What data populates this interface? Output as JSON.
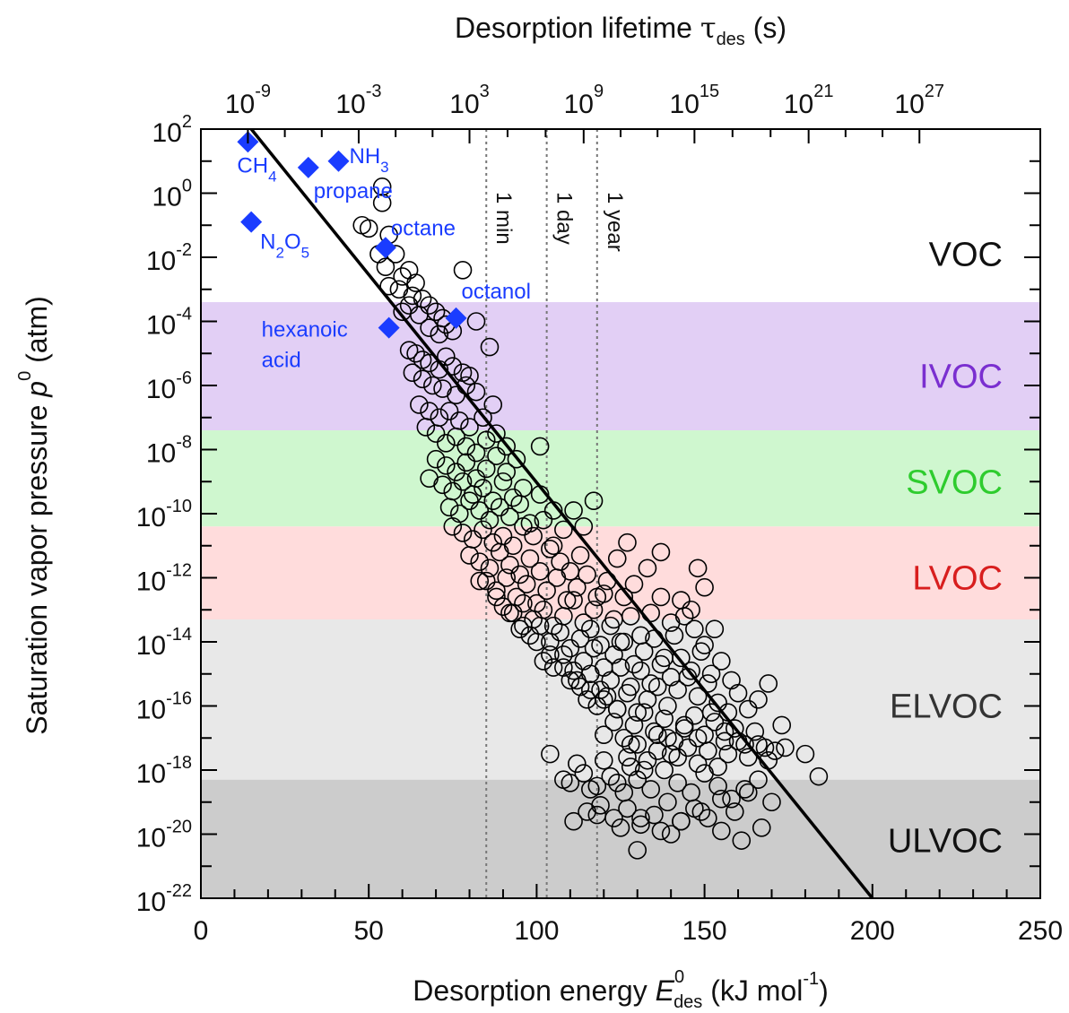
{
  "chart_data": {
    "type": "scatter",
    "title": "",
    "xlabel": {
      "main": "Desorption energy ",
      "var": "E",
      "sup": "0",
      "sub": "des",
      "unit_pre": " (kJ mol",
      "unit_sup": "-1",
      "unit_post": ")"
    },
    "ylabel": {
      "main": "Saturation vapor pressure ",
      "var": "p",
      "sup": "0",
      "unit": " (atm)"
    },
    "top_xlabel": {
      "main": "Desorption lifetime ",
      "var": "τ",
      "sub": "des",
      "unit": " (s)"
    },
    "xlim": [
      0,
      250
    ],
    "ylim_log10": [
      -22,
      2
    ],
    "x_ticks": [
      {
        "value": 0,
        "label": "0"
      },
      {
        "value": 50,
        "label": "50"
      },
      {
        "value": 100,
        "label": "100"
      },
      {
        "value": 150,
        "label": "150"
      },
      {
        "value": 200,
        "label": "200"
      },
      {
        "value": 250,
        "label": "250"
      }
    ],
    "y_ticks": [
      {
        "exp": 2,
        "base": "10",
        "sup": "2"
      },
      {
        "exp": 0,
        "base": "10",
        "sup": "0"
      },
      {
        "exp": -2,
        "base": "10",
        "sup": "-2"
      },
      {
        "exp": -4,
        "base": "10",
        "sup": "-4"
      },
      {
        "exp": -6,
        "base": "10",
        "sup": "-6"
      },
      {
        "exp": -8,
        "base": "10",
        "sup": "-8"
      },
      {
        "exp": -10,
        "base": "10",
        "sup": "-10"
      },
      {
        "exp": -12,
        "base": "10",
        "sup": "-12"
      },
      {
        "exp": -14,
        "base": "10",
        "sup": "-14"
      },
      {
        "exp": -16,
        "base": "10",
        "sup": "-16"
      },
      {
        "exp": -18,
        "base": "10",
        "sup": "-18"
      },
      {
        "exp": -20,
        "base": "10",
        "sup": "-20"
      },
      {
        "exp": -22,
        "base": "10",
        "sup": "-22"
      }
    ],
    "top_ticks": [
      {
        "energy": 14,
        "base": "10",
        "sup": "-9"
      },
      {
        "energy": 47,
        "base": "10",
        "sup": "-3"
      },
      {
        "energy": 80,
        "base": "10",
        "sup": "3"
      },
      {
        "energy": 114,
        "base": "10",
        "sup": "9"
      },
      {
        "energy": 147,
        "base": "10",
        "sup": "15"
      },
      {
        "energy": 181,
        "base": "10",
        "sup": "21"
      },
      {
        "energy": 214,
        "base": "10",
        "sup": "27"
      }
    ],
    "bands": [
      {
        "name": "VOC",
        "from": -3.4,
        "to": 2,
        "color": "#ffffff",
        "text_color": "#111111",
        "label_exp": -1.9
      },
      {
        "name": "IVOC",
        "from": -7.4,
        "to": -3.4,
        "color": "#e2cff5",
        "text_color": "#7a2fd0",
        "label_exp": -5.7
      },
      {
        "name": "SVOC",
        "from": -10.4,
        "to": -7.4,
        "color": "#cff7cf",
        "text_color": "#2ecc2e",
        "label_exp": -9.0
      },
      {
        "name": "LVOC",
        "from": -13.3,
        "to": -10.4,
        "color": "#ffdcdc",
        "text_color": "#d81e1e",
        "label_exp": -12.0
      },
      {
        "name": "ELVOC",
        "from": -18.3,
        "to": -13.3,
        "color": "#e8e8e8",
        "text_color": "#333333",
        "label_exp": -16.0
      },
      {
        "name": "ULVOC",
        "from": -22,
        "to": -18.3,
        "color": "#cccccc",
        "text_color": "#111111",
        "label_exp": -20.2
      }
    ],
    "vertical_lines": [
      {
        "energy": 85,
        "label": "1 min"
      },
      {
        "energy": 103,
        "label": "1 day"
      },
      {
        "energy": 118,
        "label": "1 year"
      }
    ],
    "fit_line": {
      "x": [
        15,
        200
      ],
      "log10_y": [
        2,
        -22
      ]
    },
    "compounds": [
      {
        "name": "CH4",
        "base": "CH",
        "sub": "4",
        "x": 14,
        "log10_y": 1.6
      },
      {
        "name": "propane",
        "base": "propane",
        "sub": "",
        "x": 32,
        "log10_y": 0.8
      },
      {
        "name": "NH3",
        "base": "NH",
        "sub": "3",
        "x": 41,
        "log10_y": 1.0
      },
      {
        "name": "N2O5",
        "base": "N",
        "sub": "2",
        "tail": "O",
        "sub2": "5",
        "x": 15,
        "log10_y": -0.9
      },
      {
        "name": "octane",
        "base": "octane",
        "sub": "",
        "x": 55,
        "log10_y": -1.7
      },
      {
        "name": "octanol",
        "base": "octanol",
        "sub": "",
        "x": 76,
        "log10_y": -3.9
      },
      {
        "name": "hexanoic acid",
        "base": "hexanoic",
        "base2": "acid",
        "sub": "",
        "x": 56,
        "log10_y": -4.2
      }
    ],
    "series": [
      {
        "marker": "open-circle",
        "x": [
          54,
          54,
          48,
          50,
          56,
          53,
          58,
          55,
          62,
          60,
          64,
          56,
          59,
          78,
          63,
          66,
          62,
          60,
          65,
          68,
          70,
          72,
          68,
          71,
          73,
          75,
          82,
          86,
          62,
          64,
          66,
          68,
          71,
          73,
          75,
          78,
          80,
          63,
          66,
          69,
          72,
          76,
          79,
          82,
          65,
          68,
          71,
          74,
          77,
          80,
          84,
          87,
          67,
          70,
          73,
          76,
          79,
          82,
          85,
          88,
          91,
          70,
          73,
          76,
          79,
          82,
          85,
          88,
          91,
          94,
          101,
          68,
          72,
          75,
          78,
          81,
          84,
          87,
          90,
          93,
          96,
          74,
          77,
          80,
          83,
          86,
          89,
          92,
          95,
          98,
          101,
          105,
          75,
          78,
          81,
          84,
          87,
          90,
          93,
          96,
          99,
          102,
          105,
          108,
          111,
          114,
          117,
          80,
          83,
          86,
          89,
          92,
          95,
          98,
          101,
          104,
          107,
          110,
          113,
          85,
          88,
          91,
          94,
          97,
          100,
          103,
          106,
          109,
          112,
          115,
          118,
          121,
          124,
          127,
          90,
          93,
          96,
          99,
          102,
          105,
          108,
          111,
          114,
          117,
          120,
          123,
          126,
          129,
          133,
          137,
          95,
          98,
          101,
          104,
          107,
          110,
          113,
          116,
          119,
          122,
          125,
          128,
          131,
          134,
          137,
          140,
          143,
          146,
          150,
          153,
          102,
          105,
          108,
          111,
          114,
          117,
          120,
          123,
          126,
          129,
          132,
          135,
          138,
          141,
          144,
          147,
          150,
          110,
          113,
          116,
          119,
          122,
          125,
          128,
          131,
          134,
          137,
          140,
          143,
          146,
          149,
          152,
          155,
          158,
          115,
          118,
          121,
          124,
          127,
          130,
          133,
          136,
          139,
          142,
          145,
          148,
          151,
          154,
          157,
          160,
          163,
          166,
          169,
          173,
          120,
          123,
          126,
          129,
          132,
          135,
          138,
          141,
          144,
          147,
          150,
          153,
          156,
          159,
          162,
          165,
          168,
          171,
          127,
          130,
          133,
          136,
          139,
          142,
          145,
          148,
          151,
          154,
          157,
          160,
          163,
          166,
          169,
          174,
          180,
          184,
          110,
          114,
          118,
          122,
          126,
          130,
          134,
          138,
          142,
          146,
          150,
          154,
          158,
          162,
          166,
          170,
          115,
          119,
          123,
          127,
          131,
          135,
          139,
          143,
          147,
          151,
          155,
          159,
          163,
          167,
          111,
          118,
          125,
          131,
          137,
          143,
          149,
          155,
          161,
          130,
          140,
          148,
          83,
          88,
          92,
          96,
          100,
          104,
          108,
          112,
          116,
          120,
          124,
          128,
          104,
          108,
          112,
          116,
          120,
          124,
          128,
          132,
          136,
          140,
          144,
          148,
          152,
          156,
          160
        ],
        "log10_y": [
          0.2,
          -0.3,
          -1.0,
          -1.1,
          -1.3,
          -1.9,
          -1.9,
          -2.3,
          -2.4,
          -2.6,
          -2.8,
          -2.9,
          -3.0,
          -2.4,
          -3.2,
          -3.3,
          -3.5,
          -3.7,
          -3.8,
          -3.5,
          -3.7,
          -3.9,
          -4.2,
          -4.4,
          -4.1,
          -4.3,
          -4.0,
          -4.8,
          -4.9,
          -5.0,
          -5.2,
          -5.3,
          -5.5,
          -5.1,
          -5.4,
          -5.6,
          -5.7,
          -5.6,
          -5.8,
          -6.0,
          -6.1,
          -6.3,
          -6.0,
          -6.2,
          -6.6,
          -6.8,
          -7.0,
          -6.8,
          -7.1,
          -7.3,
          -7.0,
          -6.6,
          -7.3,
          -7.5,
          -7.8,
          -7.6,
          -7.9,
          -8.1,
          -7.7,
          -7.5,
          -7.9,
          -8.3,
          -8.5,
          -8.7,
          -8.4,
          -8.9,
          -8.6,
          -8.2,
          -8.7,
          -8.3,
          -7.9,
          -8.9,
          -9.1,
          -9.3,
          -9.0,
          -9.4,
          -9.2,
          -9.6,
          -9.0,
          -9.5,
          -9.2,
          -9.8,
          -10.0,
          -9.6,
          -9.9,
          -10.2,
          -9.8,
          -10.1,
          -9.7,
          -10.3,
          -9.4,
          -9.9,
          -10.4,
          -10.6,
          -10.8,
          -10.5,
          -10.9,
          -10.7,
          -11.0,
          -10.4,
          -10.7,
          -10.2,
          -11.0,
          -10.5,
          -9.9,
          -10.4,
          -9.6,
          -11.3,
          -11.5,
          -11.7,
          -11.2,
          -11.6,
          -11.9,
          -11.4,
          -11.8,
          -11.1,
          -11.5,
          -11.8,
          -11.3,
          -12.1,
          -12.4,
          -12.0,
          -12.6,
          -12.2,
          -12.8,
          -12.4,
          -12.0,
          -12.7,
          -12.3,
          -11.9,
          -12.6,
          -12.1,
          -11.4,
          -10.9,
          -12.9,
          -13.1,
          -12.8,
          -13.3,
          -13.0,
          -13.5,
          -13.2,
          -12.7,
          -13.4,
          -13.0,
          -12.5,
          -13.3,
          -12.6,
          -12.2,
          -11.7,
          -11.2,
          -13.6,
          -13.8,
          -13.5,
          -14.0,
          -13.7,
          -14.2,
          -13.9,
          -13.6,
          -14.1,
          -13.5,
          -14.0,
          -13.2,
          -13.8,
          -13.1,
          -12.6,
          -13.4,
          -12.7,
          -13.0,
          -12.3,
          -13.6,
          -14.6,
          -14.8,
          -14.4,
          -14.9,
          -14.6,
          -14.2,
          -14.8,
          -14.4,
          -14.0,
          -14.7,
          -14.3,
          -13.9,
          -14.5,
          -13.8,
          -13.2,
          -13.6,
          -14.1,
          -15.2,
          -15.4,
          -15.0,
          -15.5,
          -15.2,
          -14.8,
          -15.4,
          -14.9,
          -15.3,
          -14.7,
          -15.1,
          -14.5,
          -14.9,
          -14.3,
          -15.0,
          -14.6,
          -15.2,
          -15.8,
          -16.0,
          -15.7,
          -16.1,
          -15.6,
          -16.2,
          -15.8,
          -15.4,
          -16.0,
          -15.5,
          -15.1,
          -15.7,
          -15.3,
          -15.9,
          -16.2,
          -15.6,
          -16.1,
          -15.8,
          -15.3,
          -16.6,
          -16.9,
          -16.5,
          -17.0,
          -16.6,
          -16.2,
          -16.8,
          -16.4,
          -17.1,
          -16.7,
          -16.3,
          -16.9,
          -16.5,
          -17.1,
          -16.7,
          -17.2,
          -16.8,
          -17.3,
          -17.4,
          -17.6,
          -17.2,
          -17.7,
          -17.4,
          -17.0,
          -17.6,
          -17.3,
          -17.8,
          -17.4,
          -17.9,
          -17.5,
          -17.1,
          -17.6,
          -17.2,
          -17.7,
          -17.3,
          -17.5,
          -18.2,
          -18.4,
          -18.1,
          -18.5,
          -18.2,
          -18.7,
          -18.3,
          -18.6,
          -18.0,
          -18.4,
          -18.7,
          -18.1,
          -18.5,
          -18.9,
          -18.6,
          -18.3,
          -19.0,
          -19.3,
          -19.1,
          -19.5,
          -19.2,
          -19.7,
          -19.4,
          -19.0,
          -19.6,
          -19.2,
          -19.5,
          -18.9,
          -19.3,
          -18.7,
          -19.8,
          -19.6,
          -19.4,
          -19.8,
          -19.5,
          -19.9,
          -19.6,
          -19.3,
          -19.9,
          -20.2,
          -20.5,
          -20.0,
          -11.7,
          -12.1,
          -12.6,
          -13.1,
          -13.5,
          -14.0,
          -14.4,
          -14.8,
          -15.2,
          -15.5,
          -15.8,
          -16.1,
          -17.9,
          -17.5,
          -18.3,
          -17.8,
          -18.6,
          -17.7,
          -18.4,
          -17.2,
          -18.0,
          -16.9,
          -17.5,
          -16.6,
          -17.0,
          -16.2,
          -16.8
        ]
      }
    ]
  }
}
